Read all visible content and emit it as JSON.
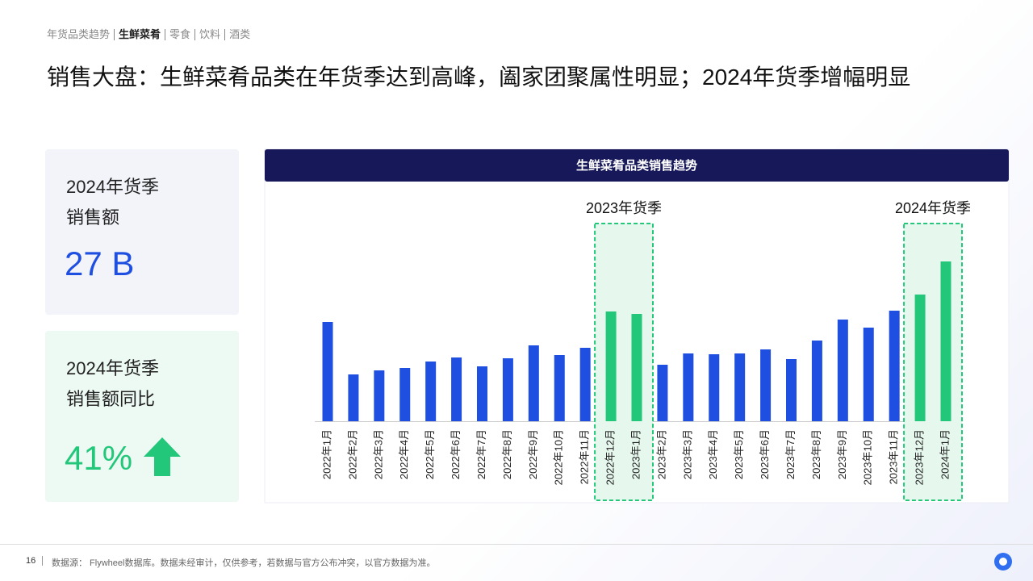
{
  "header": {
    "breadcrumb": [
      "年货品类趋势",
      "生鲜菜肴",
      "零食",
      "饮料",
      "酒类"
    ],
    "active": "生鲜菜肴",
    "title": "销售大盘：生鲜菜肴品类在年货季达到高峰，阖家团聚属性明显；2024年货季增幅明显"
  },
  "cards": [
    {
      "label": [
        "2024年货季",
        "销售额"
      ],
      "value": "27 B"
    },
    {
      "label": [
        "2024年货季",
        "销售额同比"
      ],
      "value": "41%"
    }
  ],
  "chart_data": {
    "type": "bar",
    "title": "生鲜菜肴品类销售趋势",
    "categories": [
      "2022年1月",
      "2022年2月",
      "2022年3月",
      "2022年4月",
      "2022年5月",
      "2022年6月",
      "2022年7月",
      "2022年8月",
      "2022年9月",
      "2022年10月",
      "2022年11月",
      "2022年12月",
      "2023年1月",
      "2023年2月",
      "2023年3月",
      "2023年4月",
      "2023年5月",
      "2023年6月",
      "2023年7月",
      "2023年8月",
      "2023年9月",
      "2023年10月",
      "2023年11月",
      "2023年12月",
      "2024年1月"
    ],
    "values": [
      123,
      58,
      63,
      66,
      74,
      79,
      68,
      78,
      94,
      82,
      91,
      136,
      133,
      70,
      84,
      83,
      84,
      89,
      77,
      100,
      126,
      116,
      137,
      157,
      198
    ],
    "colors": [
      "#1f4fe0",
      "#1f4fe0",
      "#1f4fe0",
      "#1f4fe0",
      "#1f4fe0",
      "#1f4fe0",
      "#1f4fe0",
      "#1f4fe0",
      "#1f4fe0",
      "#1f4fe0",
      "#1f4fe0",
      "#22c77a",
      "#22c77a",
      "#1f4fe0",
      "#1f4fe0",
      "#1f4fe0",
      "#1f4fe0",
      "#1f4fe0",
      "#1f4fe0",
      "#1f4fe0",
      "#1f4fe0",
      "#1f4fe0",
      "#1f4fe0",
      "#22c77a",
      "#22c77a"
    ],
    "highlights": [
      "2023年货季",
      "2024年货季"
    ]
  },
  "footer": {
    "page": "16",
    "source": "数据源： Flywheel数据库。数据未经审计，仅供参考，若数据与官方公布冲突，以官方数据为准。"
  }
}
